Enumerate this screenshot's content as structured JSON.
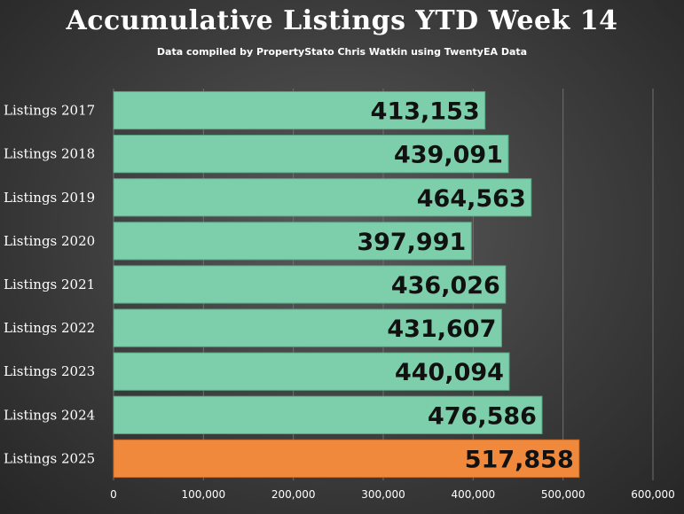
{
  "title": "Accumulative Listings YTD Week 14",
  "subtitle": "Data compiled by PropertyStato Chris Watkin using TwentyEA Data",
  "colors": {
    "bar": "#7dcfab",
    "highlight": "#f0893c",
    "bar_edge": "#5aa889"
  },
  "chart_data": {
    "type": "bar",
    "orientation": "horizontal",
    "title": "Accumulative Listings YTD Week 14",
    "subtitle": "Data compiled by PropertyStato Chris Watkin using TwentyEA Data",
    "categories": [
      "Listings 2017",
      "Listings 2018",
      "Listings 2019",
      "Listings 2020",
      "Listings 2021",
      "Listings 2022",
      "Listings 2023",
      "Listings 2024",
      "Listings 2025"
    ],
    "values": [
      413153,
      439091,
      464563,
      397991,
      436026,
      431607,
      440094,
      476586,
      517858
    ],
    "value_labels": [
      "413,153",
      "439,091",
      "464,563",
      "397,991",
      "436,026",
      "431,607",
      "440,094",
      "476,586",
      "517,858"
    ],
    "highlight_category": "Listings 2025",
    "xlim": [
      0,
      600000
    ],
    "x_ticks": [
      0,
      100000,
      200000,
      300000,
      400000,
      500000,
      600000
    ],
    "x_tick_labels": [
      "0",
      "100,000",
      "200,000",
      "300,000",
      "400,000",
      "500,000",
      "600,000"
    ],
    "grid": true,
    "legend": "none"
  }
}
